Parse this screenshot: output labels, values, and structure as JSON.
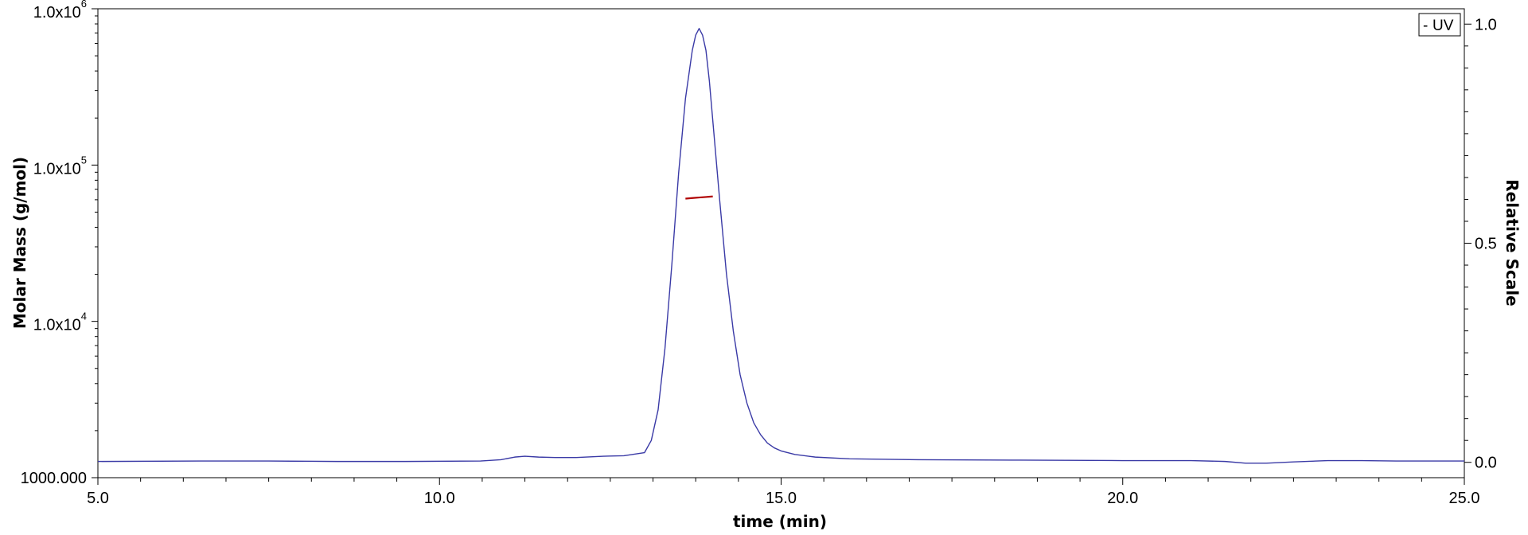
{
  "chart_data": {
    "type": "line",
    "xlabel": "time (min)",
    "ylabel": "Molar Mass (g/mol)",
    "y2label": "Relative Scale",
    "xlim": [
      5.0,
      25.0
    ],
    "xticks": [
      {
        "value": 5.0,
        "label": "5.0"
      },
      {
        "value": 10.0,
        "label": "10.0"
      },
      {
        "value": 15.0,
        "label": "15.0"
      },
      {
        "value": 20.0,
        "label": "20.0"
      },
      {
        "value": 25.0,
        "label": "25.0"
      }
    ],
    "ylim": [
      1000,
      1000000
    ],
    "yscale": "log",
    "yticks": [
      {
        "value": 1000,
        "base": "1000.000",
        "exp": ""
      },
      {
        "value": 10000,
        "base": "1.0x10",
        "exp": "4"
      },
      {
        "value": 100000,
        "base": "1.0x10",
        "exp": "5"
      },
      {
        "value": 1000000,
        "base": "1.0x10",
        "exp": "6"
      }
    ],
    "y2lim": [
      -0.035,
      1.035
    ],
    "y2ticks": [
      {
        "value": 0.0,
        "label": "0.0"
      },
      {
        "value": 0.5,
        "label": "0.5"
      },
      {
        "value": 1.0,
        "label": "1.0"
      }
    ],
    "legend": {
      "position": "top-right",
      "entries": [
        {
          "marker": "-",
          "name": "UV"
        }
      ]
    },
    "grid": false,
    "series": [
      {
        "name": "UV",
        "axis": "right",
        "color": "#3a3aa6",
        "x": [
          5.0,
          6.5,
          7.5,
          8.5,
          9.5,
          10.6,
          10.9,
          11.1,
          11.25,
          11.45,
          11.7,
          12.0,
          12.4,
          12.7,
          13.0,
          13.1,
          13.2,
          13.3,
          13.4,
          13.5,
          13.6,
          13.7,
          13.75,
          13.8,
          13.85,
          13.9,
          13.95,
          14.0,
          14.1,
          14.2,
          14.3,
          14.4,
          14.5,
          14.6,
          14.7,
          14.8,
          14.9,
          15.0,
          15.2,
          15.5,
          16.0,
          17.0,
          18.5,
          20.0,
          21.0,
          21.5,
          21.8,
          22.1,
          22.5,
          23.0,
          23.5,
          24.0,
          25.0
        ],
        "y": [
          0.002,
          0.003,
          0.003,
          0.002,
          0.002,
          0.003,
          0.006,
          0.012,
          0.014,
          0.012,
          0.011,
          0.011,
          0.014,
          0.015,
          0.022,
          0.05,
          0.12,
          0.26,
          0.45,
          0.66,
          0.83,
          0.94,
          0.975,
          0.99,
          0.975,
          0.94,
          0.87,
          0.78,
          0.6,
          0.43,
          0.3,
          0.2,
          0.135,
          0.09,
          0.063,
          0.044,
          0.033,
          0.026,
          0.018,
          0.012,
          0.008,
          0.006,
          0.005,
          0.004,
          0.004,
          0.002,
          -0.002,
          -0.002,
          0.001,
          0.004,
          0.004,
          0.003,
          0.003
        ]
      },
      {
        "name": "Molar Mass",
        "axis": "left",
        "color": "#b00000",
        "x": [
          13.6,
          13.7,
          13.8,
          13.9,
          14.0
        ],
        "y": [
          61000,
          61500,
          62000,
          62500,
          63000
        ]
      }
    ]
  }
}
